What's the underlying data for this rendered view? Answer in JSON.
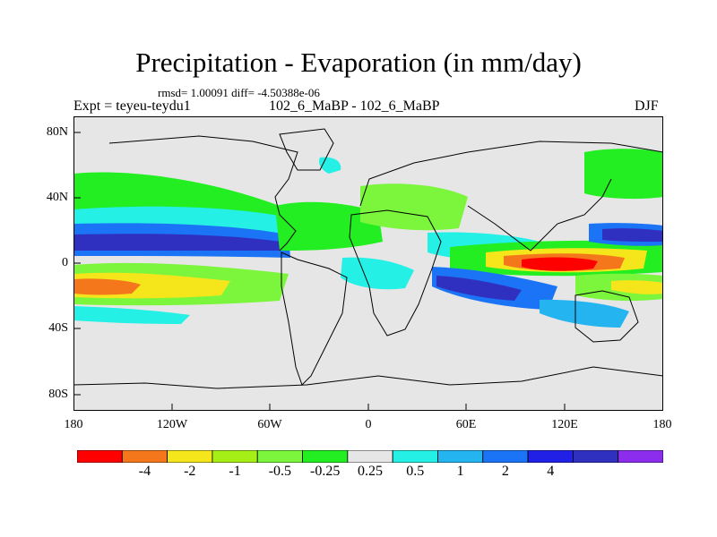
{
  "title": "Precipitation - Evaporation (in mm/day)",
  "stats": "rmsd= 1.00091 diff= -4.50388e-06",
  "experiment": "Expt = teyeu-teydu1",
  "case_id": "102_6_MaBP - 102_6_MaBP",
  "season": "DJF",
  "lat_labels": [
    "80N",
    "40N",
    "0",
    "40S",
    "80S"
  ],
  "lon_labels": [
    "180",
    "120W",
    "60W",
    "0",
    "60E",
    "120E",
    "180"
  ],
  "colorbar": {
    "colors": [
      "#ff0000",
      "#f5771c",
      "#f5e61c",
      "#a6ef16",
      "#7cf53d",
      "#22ee22",
      "#e6e6e6",
      "#24f0e6",
      "#24b4f0",
      "#1b74f5",
      "#2020e6",
      "#3030c0",
      "#8c2cec"
    ],
    "labels": [
      "-4",
      "-2",
      "-1",
      "-0.5",
      "-0.25",
      "0.25",
      "0.5",
      "1",
      "2",
      "4"
    ]
  }
}
